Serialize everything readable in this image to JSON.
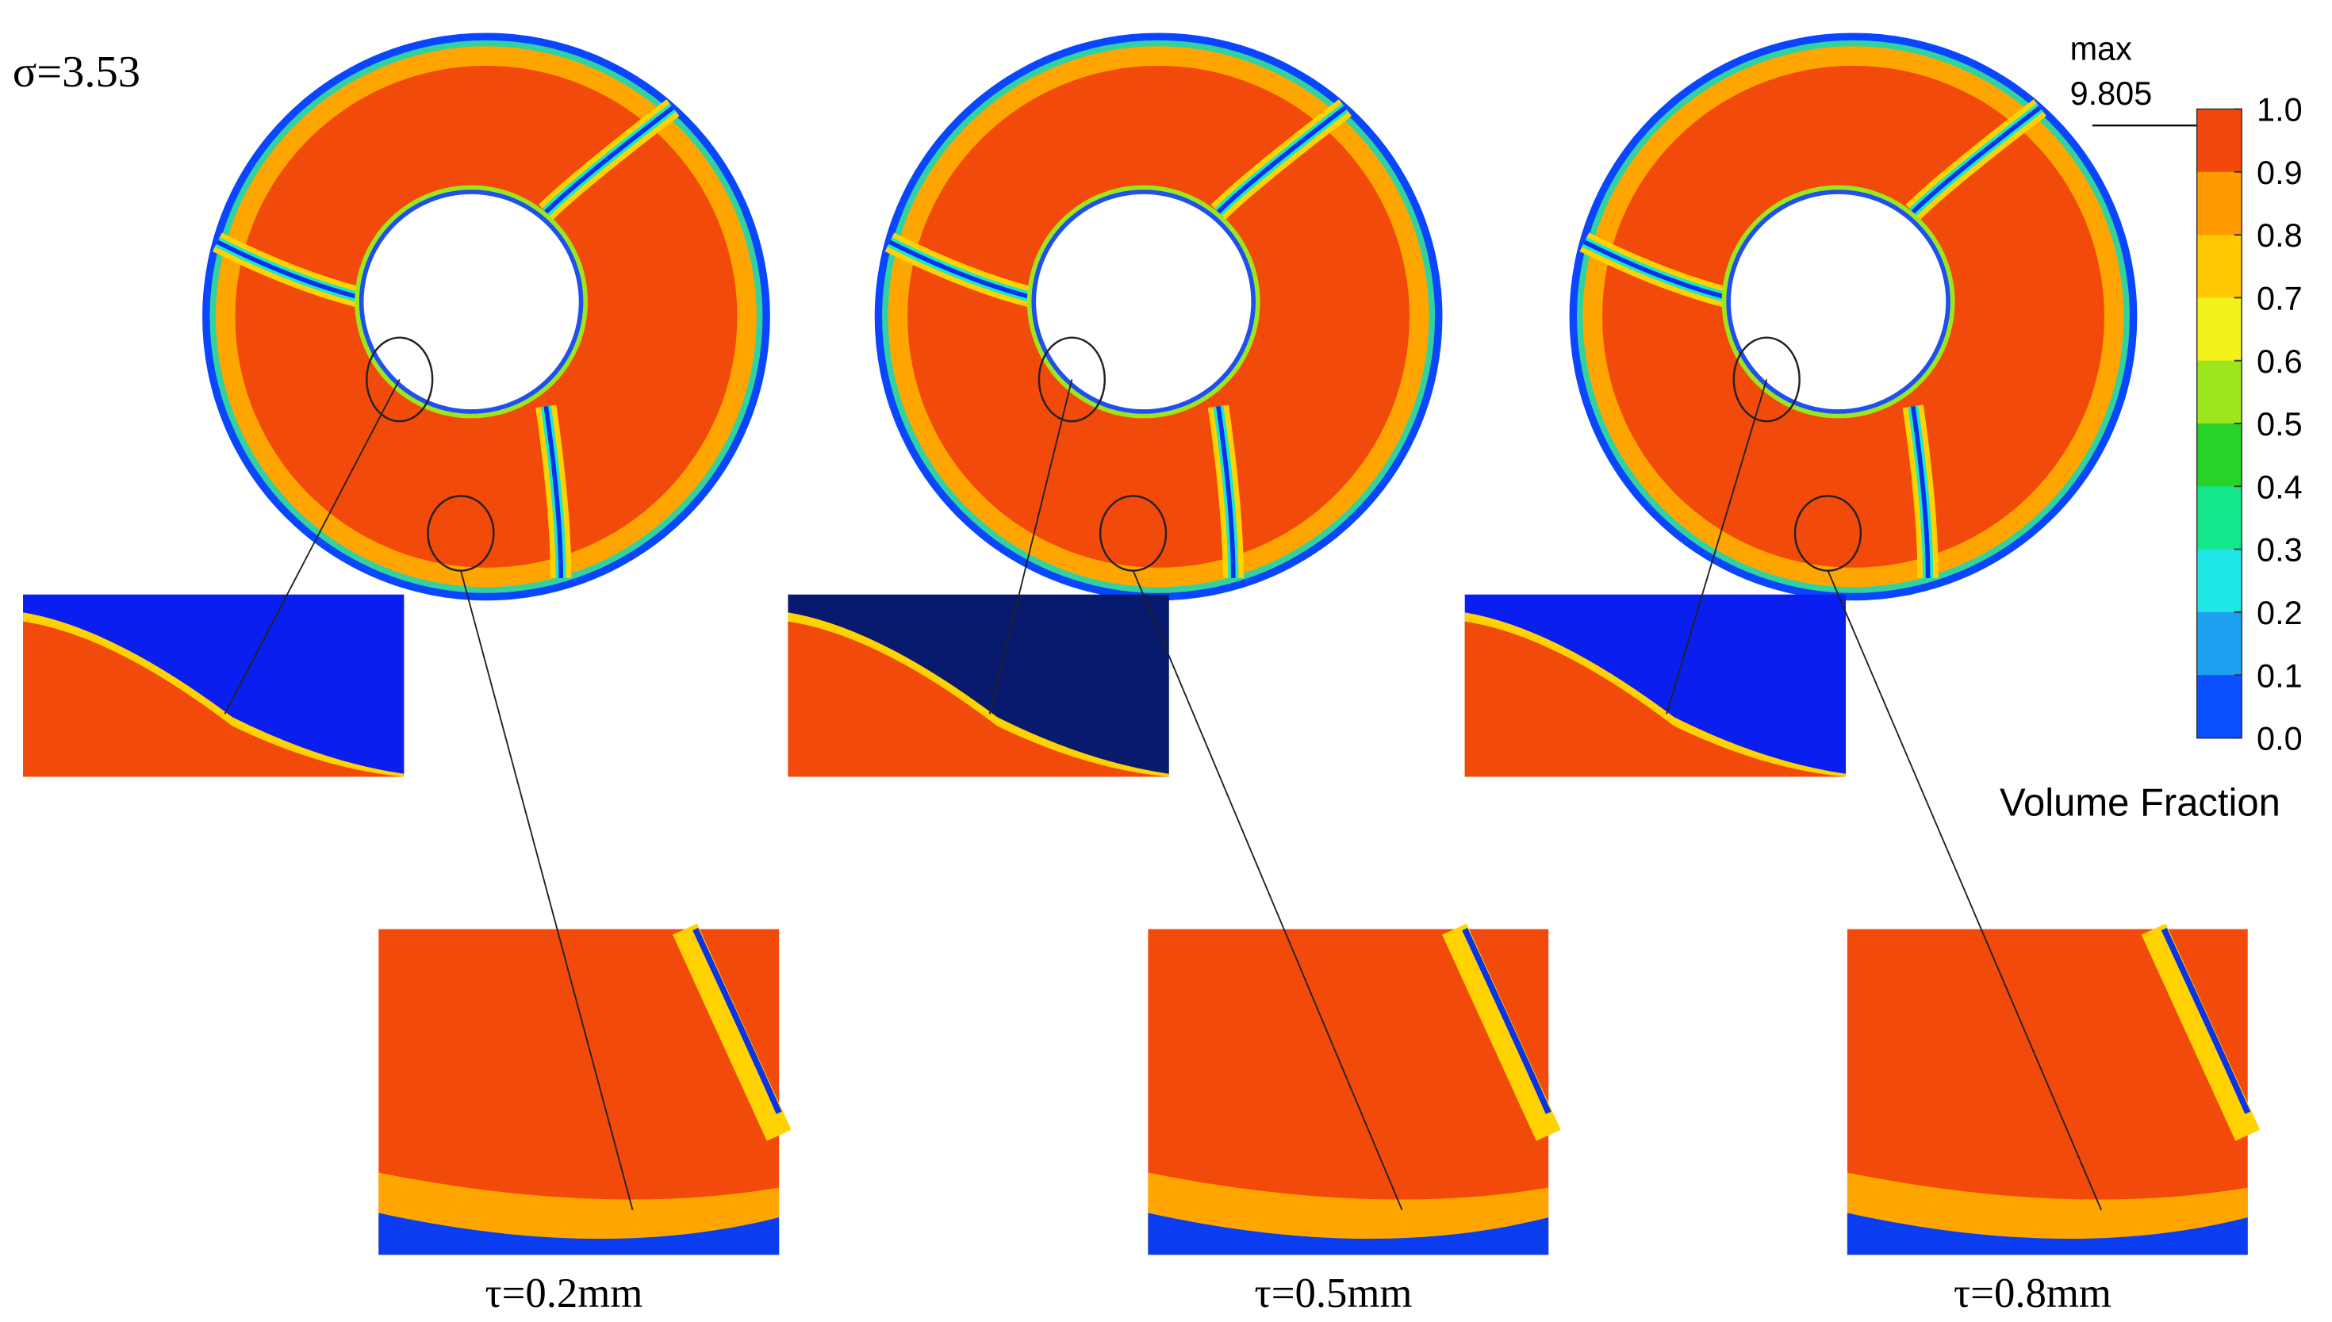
{
  "label": "σ=3.53",
  "legend": {
    "max_label": "max",
    "max_value": 9.805,
    "title": "Volume Fraction",
    "ticks": [
      {
        "value": 1,
        "label": "1.0"
      },
      {
        "value": 0.9,
        "label": "0.9"
      },
      {
        "value": 0.8,
        "label": "0.8"
      },
      {
        "value": 0.7,
        "label": "0.7"
      },
      {
        "value": 0.6,
        "label": "0.6"
      },
      {
        "value": 0.5,
        "label": "0.5"
      },
      {
        "value": 0.4,
        "label": "0.4"
      },
      {
        "value": 0.3,
        "label": "0.3"
      },
      {
        "value": 0.2,
        "label": "0.2"
      },
      {
        "value": 0.1,
        "label": "0.1"
      },
      {
        "value": 0,
        "label": "0.0"
      }
    ]
  },
  "panels": [
    {
      "caption": "τ=0.2mm"
    },
    {
      "caption": "τ=0.5mm"
    },
    {
      "caption": "τ=0.8mm"
    }
  ]
}
